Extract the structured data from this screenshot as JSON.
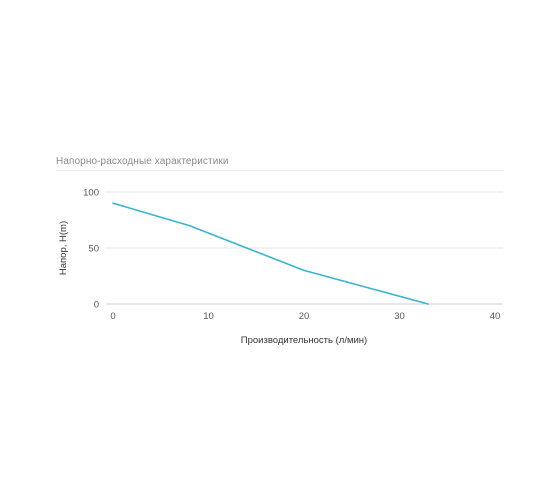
{
  "chart_data": {
    "type": "line",
    "title": "Напорно-расходные характеристики",
    "xlabel": "Производительность (л/мин)",
    "ylabel": "Напор, H(m)",
    "xlim": [
      0,
      40
    ],
    "ylim": [
      0,
      100
    ],
    "x_ticks": [
      0,
      10,
      20,
      30,
      40
    ],
    "y_ticks": [
      0,
      50,
      100
    ],
    "grid": true,
    "series": [
      {
        "x": [
          0,
          8,
          20,
          33
        ],
        "values": [
          90,
          70,
          30,
          0
        ],
        "color": "#3ab4cf"
      }
    ],
    "grid_color": "#e6e6e6",
    "axis_color": "#cfcfcf"
  }
}
